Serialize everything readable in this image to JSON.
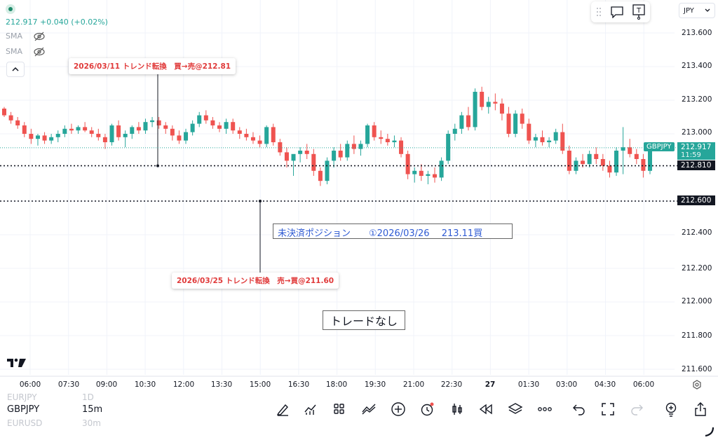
{
  "legend": {
    "price": "212.917",
    "change": "+0.040 (+0.02%)",
    "sma1": "SMA",
    "sma2": "SMA",
    "collapse": "^"
  },
  "currency": {
    "label": "JPY",
    "chevron": "⌄"
  },
  "toolbox_icons": [
    "drag-handle-icon",
    "comment-icon",
    "text-tool-icon"
  ],
  "y_axis_ticks": [
    "213.600",
    "213.400",
    "213.200",
    "213.000",
    "212.800",
    "212.600",
    "212.400",
    "212.200",
    "212.000",
    "211.800",
    "211.600"
  ],
  "x_axis_ticks": [
    "06:00",
    "07:30",
    "09:00",
    "10:30",
    "12:00",
    "13:30",
    "15:00",
    "16:30",
    "18:00",
    "19:30",
    "21:00",
    "22:30",
    "27",
    "01:30",
    "03:00",
    "04:30",
    "06:00"
  ],
  "price_labels": {
    "symbol": "GBPJPY",
    "last": "212.917",
    "countdown": "11:59",
    "line1": "212.810",
    "line2": "212.600"
  },
  "annotations": {
    "tag1": "2026/03/11  トレンド転換　買→売@212.81",
    "tag2": "2026/03/25 トレンド転換　売→買@211.60",
    "open_position": "未決済ポジション　　①2026/03/26　 213.11買",
    "no_trade": "トレードなし"
  },
  "colors": {
    "up": "#26a69a",
    "down": "#ef5350",
    "tag_text": "#e03a3a",
    "blue_text": "#2f5bd3"
  },
  "logo": "TV",
  "bottom": {
    "symbols": [
      {
        "name": "EURJPY",
        "interval": "1D"
      },
      {
        "name": "GBPJPY",
        "interval": "15m"
      },
      {
        "name": "EURUSD",
        "interval": "30m"
      }
    ],
    "tools": [
      "pen-icon",
      "indicators-icon",
      "layouts-icon",
      "compare-icon",
      "add-icon",
      "alert-icon",
      "candle-type-icon",
      "replay-icon",
      "layers-icon",
      "more-icon",
      "undo-icon",
      "fullscreen-icon",
      "redo-icon",
      "lightbulb-icon",
      "share-icon"
    ]
  },
  "chart_data": {
    "type": "candlestick",
    "symbol": "GBPJPY",
    "interval": "15m",
    "ylim": [
      211.5,
      213.7
    ],
    "y_ticks": [
      213.6,
      213.4,
      213.2,
      213.0,
      212.8,
      212.6,
      212.4,
      212.2,
      212.0,
      211.8,
      211.6
    ],
    "horizontal_lines": [
      212.81,
      212.6
    ],
    "last_price": 212.917,
    "candles": [
      [
        213.15,
        213.16,
        213.1,
        213.11
      ],
      [
        213.11,
        213.13,
        213.06,
        213.08
      ],
      [
        213.08,
        213.1,
        213.03,
        213.05
      ],
      [
        213.05,
        213.07,
        212.98,
        213.0
      ],
      [
        213.0,
        213.03,
        212.94,
        212.97
      ],
      [
        212.97,
        213.0,
        212.93,
        212.99
      ],
      [
        212.99,
        213.01,
        212.94,
        212.96
      ],
      [
        212.96,
        213.0,
        212.94,
        212.98
      ],
      [
        212.98,
        213.02,
        212.95,
        213.0
      ],
      [
        213.0,
        213.05,
        212.98,
        213.03
      ],
      [
        213.03,
        213.06,
        213.0,
        213.02
      ],
      [
        213.02,
        213.05,
        213.0,
        213.04
      ],
      [
        213.04,
        213.07,
        213.01,
        213.02
      ],
      [
        213.02,
        213.04,
        212.98,
        213.0
      ],
      [
        213.0,
        213.03,
        212.96,
        212.98
      ],
      [
        212.98,
        213.0,
        212.91,
        212.95
      ],
      [
        212.95,
        213.06,
        212.93,
        213.05
      ],
      [
        213.05,
        213.08,
        212.96,
        212.98
      ],
      [
        212.98,
        213.02,
        212.92,
        213.0
      ],
      [
        213.0,
        213.05,
        212.97,
        213.04
      ],
      [
        213.04,
        213.07,
        213.0,
        213.02
      ],
      [
        213.02,
        213.09,
        213.0,
        213.07
      ],
      [
        213.07,
        213.1,
        213.04,
        213.08
      ],
      [
        213.08,
        213.1,
        213.03,
        213.05
      ],
      [
        213.05,
        213.07,
        213.0,
        213.03
      ],
      [
        213.03,
        213.05,
        212.96,
        212.99
      ],
      [
        212.99,
        213.02,
        212.94,
        212.96
      ],
      [
        212.96,
        213.03,
        212.94,
        213.01
      ],
      [
        213.01,
        213.08,
        212.99,
        213.06
      ],
      [
        213.06,
        213.13,
        213.04,
        213.11
      ],
      [
        213.11,
        213.14,
        213.06,
        213.08
      ],
      [
        213.08,
        213.1,
        213.03,
        213.05
      ],
      [
        213.05,
        213.07,
        213.01,
        213.03
      ],
      [
        213.03,
        213.09,
        213.0,
        213.07
      ],
      [
        213.07,
        213.09,
        213.0,
        213.02
      ],
      [
        213.02,
        213.04,
        212.97,
        213.0
      ],
      [
        213.0,
        213.03,
        212.96,
        212.98
      ],
      [
        212.98,
        213.01,
        212.94,
        212.96
      ],
      [
        212.96,
        212.99,
        212.92,
        212.94
      ],
      [
        212.94,
        213.05,
        212.92,
        213.04
      ],
      [
        213.04,
        213.06,
        212.93,
        212.95
      ],
      [
        212.95,
        212.97,
        212.87,
        212.89
      ],
      [
        212.89,
        212.92,
        212.8,
        212.84
      ],
      [
        212.84,
        212.87,
        212.75,
        212.88
      ],
      [
        212.88,
        212.92,
        212.83,
        212.9
      ],
      [
        212.9,
        212.94,
        212.85,
        212.88
      ],
      [
        212.88,
        212.91,
        212.75,
        212.78
      ],
      [
        212.78,
        212.8,
        212.69,
        212.72
      ],
      [
        212.72,
        212.86,
        212.7,
        212.84
      ],
      [
        212.84,
        212.92,
        212.8,
        212.9
      ],
      [
        212.9,
        212.94,
        212.84,
        212.86
      ],
      [
        212.86,
        212.96,
        212.84,
        212.94
      ],
      [
        212.94,
        212.99,
        212.88,
        212.91
      ],
      [
        212.91,
        212.96,
        212.87,
        212.94
      ],
      [
        212.94,
        213.06,
        212.92,
        213.05
      ],
      [
        213.05,
        213.07,
        212.96,
        212.98
      ],
      [
        212.98,
        213.02,
        212.94,
        212.97
      ],
      [
        212.97,
        213.0,
        212.93,
        212.95
      ],
      [
        212.95,
        212.99,
        212.92,
        212.96
      ],
      [
        212.96,
        212.98,
        212.86,
        212.88
      ],
      [
        212.88,
        212.9,
        212.73,
        212.76
      ],
      [
        212.76,
        212.8,
        212.71,
        212.78
      ],
      [
        212.78,
        212.82,
        212.72,
        212.75
      ],
      [
        212.75,
        212.78,
        212.7,
        212.76
      ],
      [
        212.76,
        212.8,
        212.71,
        212.74
      ],
      [
        212.74,
        212.86,
        212.72,
        212.84
      ],
      [
        212.84,
        213.02,
        212.82,
        213.0
      ],
      [
        213.0,
        213.06,
        212.96,
        213.03
      ],
      [
        213.03,
        213.13,
        213.0,
        213.11
      ],
      [
        213.11,
        213.16,
        213.02,
        213.04
      ],
      [
        213.04,
        213.27,
        213.02,
        213.25
      ],
      [
        213.25,
        213.28,
        213.14,
        213.16
      ],
      [
        213.16,
        213.22,
        213.12,
        213.19
      ],
      [
        213.19,
        213.24,
        213.14,
        213.18
      ],
      [
        213.18,
        213.21,
        213.08,
        213.12
      ],
      [
        213.12,
        213.16,
        212.98,
        213.0
      ],
      [
        213.0,
        213.14,
        212.98,
        213.12
      ],
      [
        213.12,
        213.15,
        213.03,
        213.06
      ],
      [
        213.06,
        213.09,
        212.94,
        212.96
      ],
      [
        212.96,
        213.0,
        212.92,
        212.98
      ],
      [
        212.98,
        213.02,
        212.93,
        212.95
      ],
      [
        212.95,
        212.98,
        212.92,
        212.96
      ],
      [
        212.96,
        213.03,
        212.94,
        213.01
      ],
      [
        213.01,
        213.06,
        212.88,
        212.9
      ],
      [
        212.9,
        212.93,
        212.76,
        212.78
      ],
      [
        212.78,
        212.86,
        212.76,
        212.84
      ],
      [
        212.84,
        212.88,
        212.8,
        212.82
      ],
      [
        212.82,
        212.9,
        212.8,
        212.88
      ],
      [
        212.88,
        212.92,
        212.82,
        212.85
      ],
      [
        212.85,
        212.88,
        212.78,
        212.81
      ],
      [
        212.81,
        212.84,
        212.74,
        212.77
      ],
      [
        212.77,
        212.92,
        212.75,
        212.9
      ],
      [
        212.9,
        213.04,
        212.76,
        212.92
      ],
      [
        212.92,
        212.97,
        212.86,
        212.88
      ],
      [
        212.88,
        212.91,
        212.82,
        212.85
      ],
      [
        212.85,
        212.88,
        212.74,
        212.78
      ],
      [
        212.78,
        212.94,
        212.76,
        212.917
      ]
    ]
  }
}
